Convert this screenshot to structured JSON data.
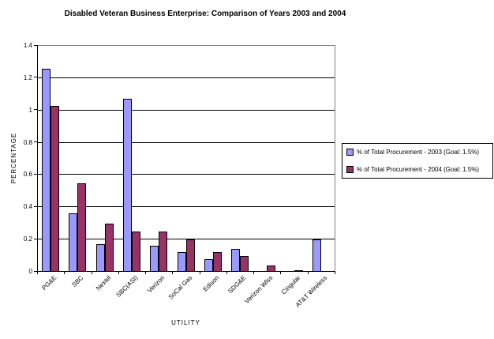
{
  "chart_data": {
    "type": "bar",
    "title": "Disabled Veteran Business Enterprise: Comparison of Years 2003 and 2004",
    "xlabel": "UTILITY",
    "ylabel": "PERCENTAGE",
    "ylim": [
      0,
      1.4
    ],
    "ytick_step": 0.2,
    "ytick_labels": [
      "0",
      "0.2",
      "0.4",
      "0.6",
      "0.8",
      "1",
      "1.2",
      "1.4"
    ],
    "grid": true,
    "legend_position": "right",
    "categories": [
      "PG&E",
      "SBC",
      "Nextel",
      "SBC(ASI)",
      "Verizon",
      "SoCal Gas",
      "Edison",
      "SDG&E",
      "Verizon Wlss",
      "Cingular",
      "AT&T Wireless"
    ],
    "series": [
      {
        "name": "% of Total Procurement - 2003 (Goal: 1.5%)",
        "color": "#9999FF",
        "values": [
          1.26,
          0.36,
          0.17,
          1.07,
          0.16,
          0.12,
          0.08,
          0.14,
          0,
          0,
          0.2
        ]
      },
      {
        "name": "% of Total Procurement - 2004 (Goal: 1.5%)",
        "color": "#993366",
        "values": [
          1.03,
          0.55,
          0.3,
          0.25,
          0.25,
          0.2,
          0.12,
          0.1,
          0.04,
          0.01,
          0
        ]
      }
    ],
    "colors": {
      "axis": "#000000",
      "plot_border": "#808080",
      "gridline": "#000000",
      "background": "#FFFFFF"
    }
  }
}
